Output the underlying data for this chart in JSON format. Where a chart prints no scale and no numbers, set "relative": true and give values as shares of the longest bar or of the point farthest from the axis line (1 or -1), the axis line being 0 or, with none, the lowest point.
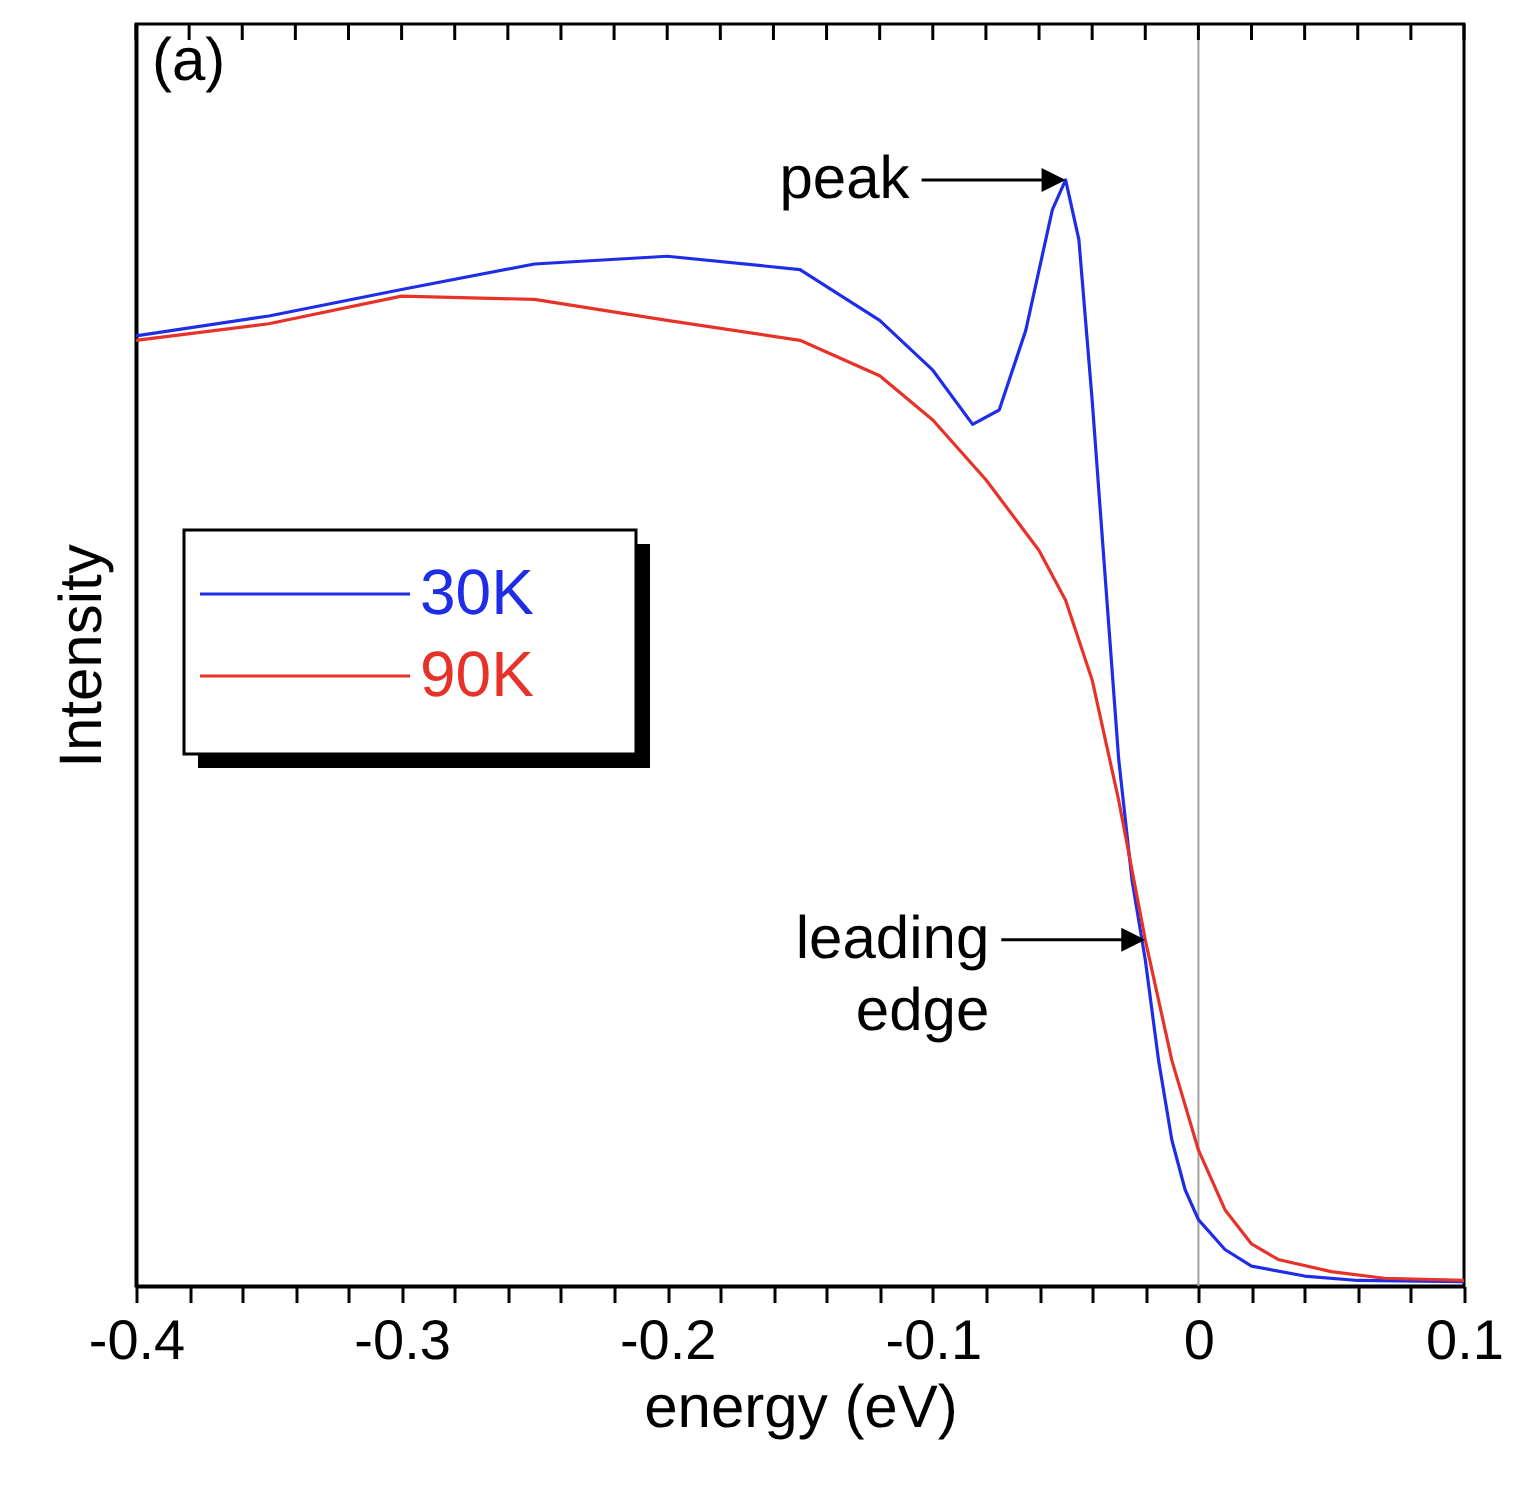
{
  "chart_data": {
    "type": "line",
    "relative": true,
    "xlabel": "energy (eV)",
    "ylabel": "Intensity",
    "xlim": [
      -0.4,
      0.1
    ],
    "xticks": [
      -0.4,
      {
        "value": -0.38,
        "label": null
      },
      {
        "value": -0.36,
        "label": null
      },
      {
        "value": -0.34,
        "label": null
      },
      {
        "value": -0.32,
        "label": null
      },
      -0.3,
      {
        "value": -0.28,
        "label": null
      },
      {
        "value": -0.26,
        "label": null
      },
      {
        "value": -0.24,
        "label": null
      },
      {
        "value": -0.22,
        "label": null
      },
      -0.2,
      {
        "value": -0.18,
        "label": null
      },
      {
        "value": -0.16,
        "label": null
      },
      {
        "value": -0.14,
        "label": null
      },
      {
        "value": -0.12,
        "label": null
      },
      -0.1,
      {
        "value": -0.08,
        "label": null
      },
      {
        "value": -0.06,
        "label": null
      },
      {
        "value": -0.04,
        "label": null
      },
      {
        "value": -0.02,
        "label": null
      },
      0,
      {
        "value": 0.02,
        "label": null
      },
      {
        "value": 0.04,
        "label": null
      },
      {
        "value": 0.06,
        "label": null
      },
      {
        "value": 0.08,
        "label": null
      },
      0.1
    ],
    "legend": "left",
    "grid": false,
    "marker": "none",
    "line_style": "solid",
    "ref_lines": [
      {
        "axis": "x",
        "value": 0,
        "color": "#a0a0a0"
      }
    ],
    "annotations": [
      "(a)",
      {
        "text": "peak",
        "x": -0.05,
        "y": 1.0
      },
      {
        "text": "leading edge",
        "x": -0.02,
        "y": 0.313
      }
    ],
    "series": [
      {
        "name": "30K",
        "color": "#1f2ee6",
        "x": [
          -0.4,
          -0.35,
          -0.3,
          -0.25,
          -0.2,
          -0.15,
          -0.12,
          -0.1,
          -0.085,
          -0.075,
          -0.065,
          -0.055,
          -0.05,
          -0.045,
          -0.04,
          -0.035,
          -0.03,
          -0.025,
          -0.02,
          -0.015,
          -0.01,
          -0.005,
          0,
          0.01,
          0.02,
          0.04,
          0.06,
          0.1
        ],
        "values": [
          0.859,
          0.877,
          0.901,
          0.924,
          0.931,
          0.919,
          0.873,
          0.828,
          0.779,
          0.792,
          0.864,
          0.973,
          1.0,
          0.946,
          0.801,
          0.638,
          0.476,
          0.367,
          0.295,
          0.204,
          0.132,
          0.087,
          0.06,
          0.033,
          0.018,
          0.009,
          0.005,
          0.004
        ]
      },
      {
        "name": "90K",
        "color": "#e63228",
        "x": [
          -0.4,
          -0.35,
          -0.3,
          -0.25,
          -0.2,
          -0.15,
          -0.12,
          -0.1,
          -0.08,
          -0.06,
          -0.05,
          -0.04,
          -0.03,
          -0.02,
          -0.01,
          0,
          0.01,
          0.02,
          0.03,
          0.05,
          0.07,
          0.1
        ],
        "values": [
          0.855,
          0.87,
          0.895,
          0.892,
          0.873,
          0.855,
          0.823,
          0.783,
          0.729,
          0.665,
          0.62,
          0.548,
          0.439,
          0.313,
          0.204,
          0.123,
          0.069,
          0.038,
          0.024,
          0.013,
          0.007,
          0.005
        ]
      }
    ]
  }
}
